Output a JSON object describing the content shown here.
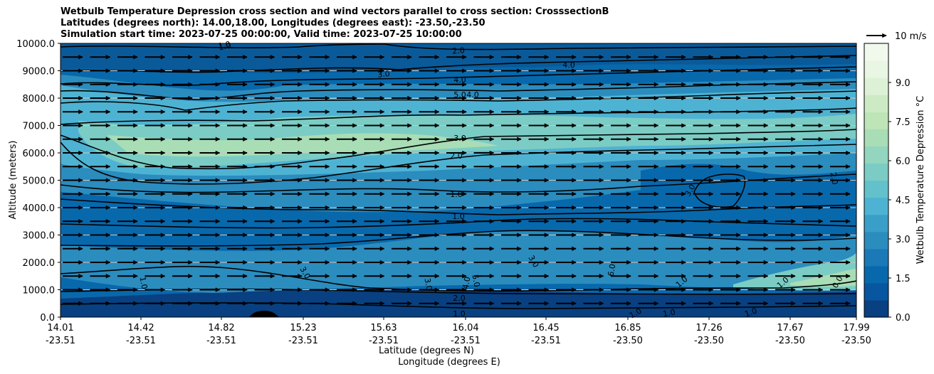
{
  "chart_data": {
    "type": "contour",
    "title_lines": [
      "Wetbulb Temperature Depression cross section and wind vectors parallel to cross section: CrosssectionB",
      "Latitudes (degrees north): 14.00,18.00, Longitudes (degrees east): -23.50,-23.50",
      "Simulation start time: 2023-07-25 00:00:00, Valid time: 2023-07-25 10:00:00"
    ],
    "ylabel": "Altitude (meters)",
    "xlabel_lat": "Latitude (degrees N)",
    "xlabel_lon": "Longitude (degrees E)",
    "ylim": [
      0,
      10000
    ],
    "yticks": [
      "0.0",
      "1000.0",
      "2000.0",
      "3000.0",
      "4000.0",
      "5000.0",
      "6000.0",
      "7000.0",
      "8000.0",
      "9000.0",
      "10000.0"
    ],
    "x_ticks_lat": [
      "14.01",
      "14.42",
      "14.82",
      "15.23",
      "15.63",
      "16.04",
      "16.45",
      "16.85",
      "17.26",
      "17.67",
      "17.99"
    ],
    "x_ticks_lon": [
      "-23.51",
      "-23.51",
      "-23.51",
      "-23.51",
      "-23.51",
      "-23.51",
      "-23.51",
      "-23.50",
      "-23.50",
      "-23.50",
      "-23.50"
    ],
    "colorbar_label": "Wetbulb Temperature Depression °C",
    "colorbar_range": [
      0,
      10.5
    ],
    "colorbar_ticks": [
      "0.0",
      "1.5",
      "3.0",
      "4.5",
      "6.0",
      "7.5",
      "9.0"
    ],
    "quiver_key_label": "10 m/s",
    "contour_labels": [
      "1.0",
      "2.0",
      "3.0",
      "4.0",
      "4.0",
      "5.0",
      "4.0",
      "3.0",
      "2.0",
      "1.0",
      "1.0",
      "2.0",
      "3.0",
      "3.0",
      "3.0",
      "3.0",
      "4.0",
      "5.0",
      "6.0",
      "1.0",
      "1.0",
      "0.0",
      "2.0",
      "1.0",
      "1.0",
      "1.0",
      "1.0",
      "1.0",
      "1.0"
    ],
    "wind_rows_m": [
      9500,
      9000,
      8500,
      8000,
      7500,
      7000,
      6500,
      6000,
      5500,
      5000,
      4500,
      4000,
      3500,
      3000,
      2500,
      2000,
      1500,
      1000,
      500
    ],
    "wind_speed_ms": 10
  }
}
